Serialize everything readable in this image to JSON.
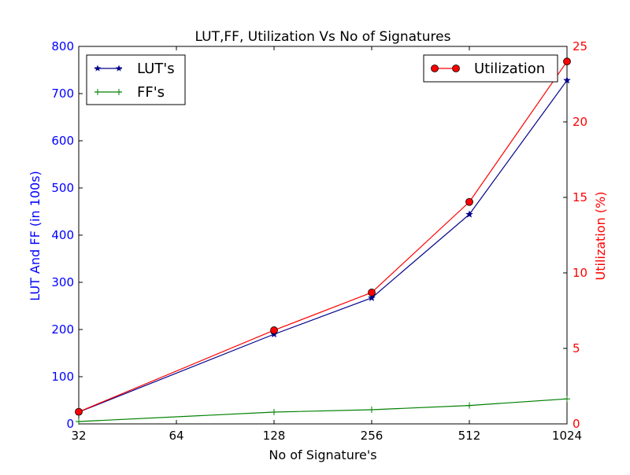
{
  "chart_data": {
    "type": "line",
    "title": "LUT,FF, Utilization Vs No of Signatures",
    "xlabel": "No of Signature's",
    "ylabel_left": "LUT And FF (in 100s)",
    "ylabel_right": "Utilization (%)",
    "x_scale": "log2",
    "categories": [
      "32",
      "64",
      "128",
      "256",
      "512",
      "1024"
    ],
    "x": [
      32,
      128,
      256,
      512,
      1024
    ],
    "ylim_left": [
      0,
      800
    ],
    "yticks_left": [
      "0",
      "100",
      "200",
      "300",
      "400",
      "500",
      "600",
      "700",
      "800"
    ],
    "ylim_right": [
      0,
      25
    ],
    "yticks_right": [
      "0",
      "5",
      "10",
      "15",
      "20",
      "25"
    ],
    "grid": false,
    "series": [
      {
        "name": "LUT's",
        "axis": "left",
        "color": "#00008b",
        "marker": "star",
        "values": [
          25,
          190,
          267,
          444,
          728
        ]
      },
      {
        "name": "FF's",
        "axis": "left",
        "color": "#008000",
        "marker": "plus",
        "values": [
          5,
          25,
          30,
          39,
          53
        ]
      },
      {
        "name": "Utilization",
        "axis": "right",
        "color": "#ff0000",
        "marker": "circle",
        "values": [
          0.8,
          6.2,
          8.7,
          14.7,
          24.0
        ]
      }
    ],
    "legend_left": {
      "placement": "top-left",
      "entries": [
        "LUT's",
        "FF's"
      ]
    },
    "legend_right": {
      "placement": "top-right",
      "entries": [
        "Utilization"
      ]
    },
    "left_axis_color": "#0000ff",
    "right_axis_color": "#ff0000"
  }
}
